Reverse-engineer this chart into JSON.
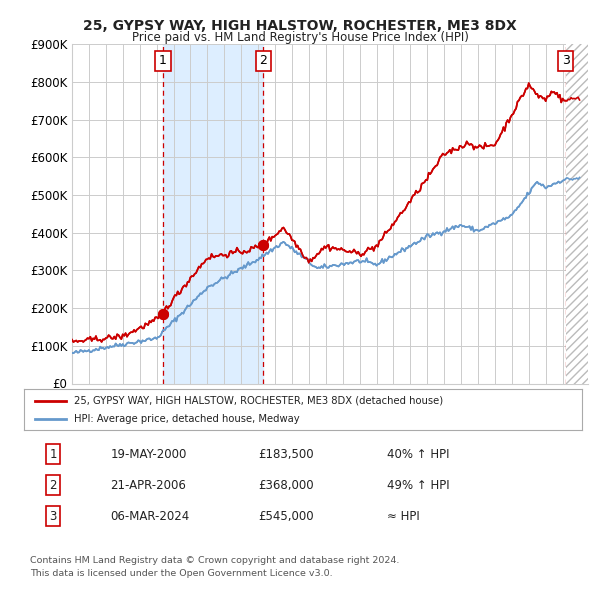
{
  "title1": "25, GYPSY WAY, HIGH HALSTOW, ROCHESTER, ME3 8DX",
  "title2": "Price paid vs. HM Land Registry's House Price Index (HPI)",
  "ylim": [
    0,
    900000
  ],
  "xlim_start": 1995.0,
  "xlim_end": 2025.5,
  "yticks": [
    0,
    100000,
    200000,
    300000,
    400000,
    500000,
    600000,
    700000,
    800000,
    900000
  ],
  "ytick_labels": [
    "£0",
    "£100K",
    "£200K",
    "£300K",
    "£400K",
    "£500K",
    "£600K",
    "£700K",
    "£800K",
    "£900K"
  ],
  "hpi_color": "#6699cc",
  "price_color": "#cc0000",
  "sale1_x": 2000.38,
  "sale1_y": 183500,
  "sale2_x": 2006.31,
  "sale2_y": 368000,
  "sale3_x": 2024.18,
  "sale3_y": 545000,
  "shaded_x1": 2000.38,
  "shaded_x2": 2006.31,
  "shaded_color": "#ddeeff",
  "bg_color": "#ffffff",
  "grid_color": "#cccccc",
  "legend_label1": "25, GYPSY WAY, HIGH HALSTOW, ROCHESTER, ME3 8DX (detached house)",
  "legend_label2": "HPI: Average price, detached house, Medway",
  "table_data": [
    [
      "1",
      "19-MAY-2000",
      "£183,500",
      "40% ↑ HPI"
    ],
    [
      "2",
      "21-APR-2006",
      "£368,000",
      "49% ↑ HPI"
    ],
    [
      "3",
      "06-MAR-2024",
      "£545,000",
      "≈ HPI"
    ]
  ],
  "footnote1": "Contains HM Land Registry data © Crown copyright and database right 2024.",
  "footnote2": "This data is licensed under the Open Government Licence v3.0."
}
